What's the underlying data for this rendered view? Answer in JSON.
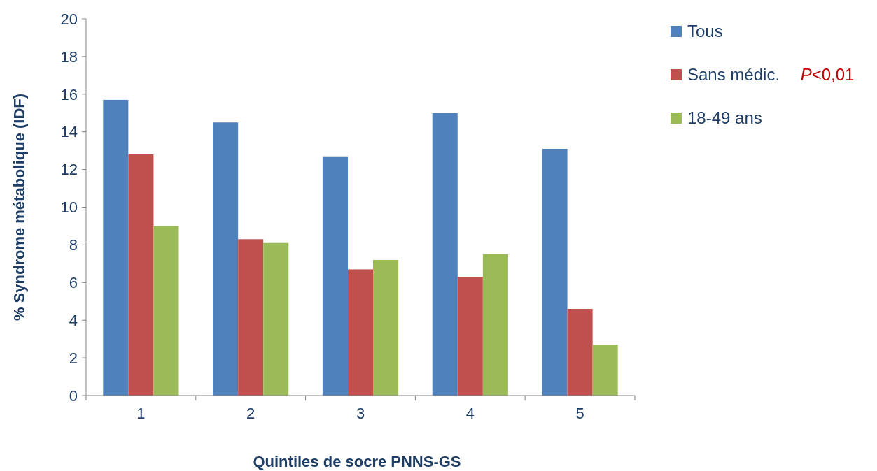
{
  "chart_data": {
    "type": "bar",
    "xlabel": "Quintiles de socre PNNS-GS",
    "ylabel": "% Syndrome métabolique (IDF)",
    "categories": [
      "1",
      "2",
      "3",
      "4",
      "5"
    ],
    "series": [
      {
        "name": "Tous",
        "color": "#4f81bd",
        "values": [
          15.7,
          14.5,
          12.7,
          15.0,
          13.1
        ]
      },
      {
        "name": "Sans médic.",
        "color": "#c0504d",
        "values": [
          12.8,
          8.3,
          6.7,
          6.3,
          4.6
        ]
      },
      {
        "name": "18-49 ans",
        "color": "#9bbb59",
        "values": [
          9.0,
          8.1,
          7.2,
          7.5,
          2.7
        ]
      }
    ],
    "ylim": [
      0,
      20
    ],
    "yticks": [
      0,
      2,
      4,
      6,
      8,
      10,
      12,
      14,
      16,
      18,
      20
    ],
    "grid": false,
    "legend": "right",
    "annotations": [
      "P<0,01"
    ]
  }
}
